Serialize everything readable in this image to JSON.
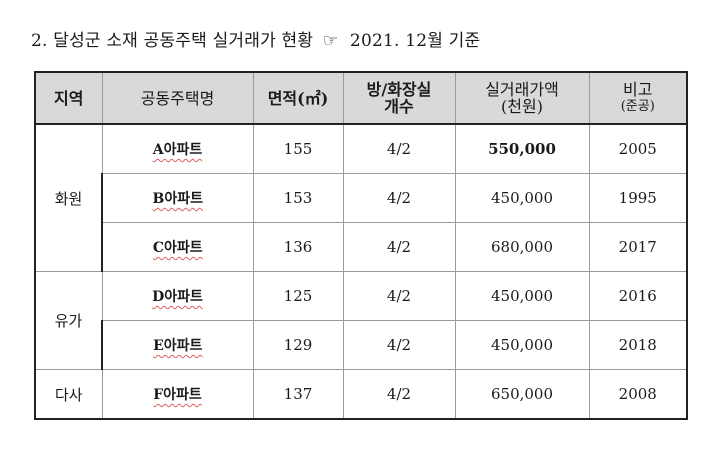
{
  "title": {
    "prefix": "2. 달성군 소재 공동주택 실거래가 현황",
    "pointer": "☞",
    "suffix": "2021. 12월 기준"
  },
  "table": {
    "headers": {
      "region": "지역",
      "name": "공동주택명",
      "area": "면적(㎡)",
      "rooms_line1": "방/화장실",
      "rooms_line2": "개수",
      "price_line1": "실거래가액",
      "price_line2": "(천원)",
      "note_line1": "비고",
      "note_line2": "(준공)"
    },
    "groups": [
      {
        "region": "화원",
        "rows": [
          {
            "name": "A아파트",
            "area": "155",
            "rooms": "4/2",
            "price": "550,000",
            "year": "2005"
          },
          {
            "name": "B아파트",
            "area": "153",
            "rooms": "4/2",
            "price": "450,000",
            "year": "1995"
          },
          {
            "name": "C아파트",
            "area": "136",
            "rooms": "4/2",
            "price": "680,000",
            "year": "2017"
          }
        ]
      },
      {
        "region": "유가",
        "rows": [
          {
            "name": "D아파트",
            "area": "125",
            "rooms": "4/2",
            "price": "450,000",
            "year": "2016"
          },
          {
            "name": "E아파트",
            "area": "129",
            "rooms": "4/2",
            "price": "450,000",
            "year": "2018"
          }
        ]
      },
      {
        "region": "다사",
        "rows": [
          {
            "name": "F아파트",
            "area": "137",
            "rooms": "4/2",
            "price": "650,000",
            "year": "2008"
          }
        ]
      }
    ]
  }
}
